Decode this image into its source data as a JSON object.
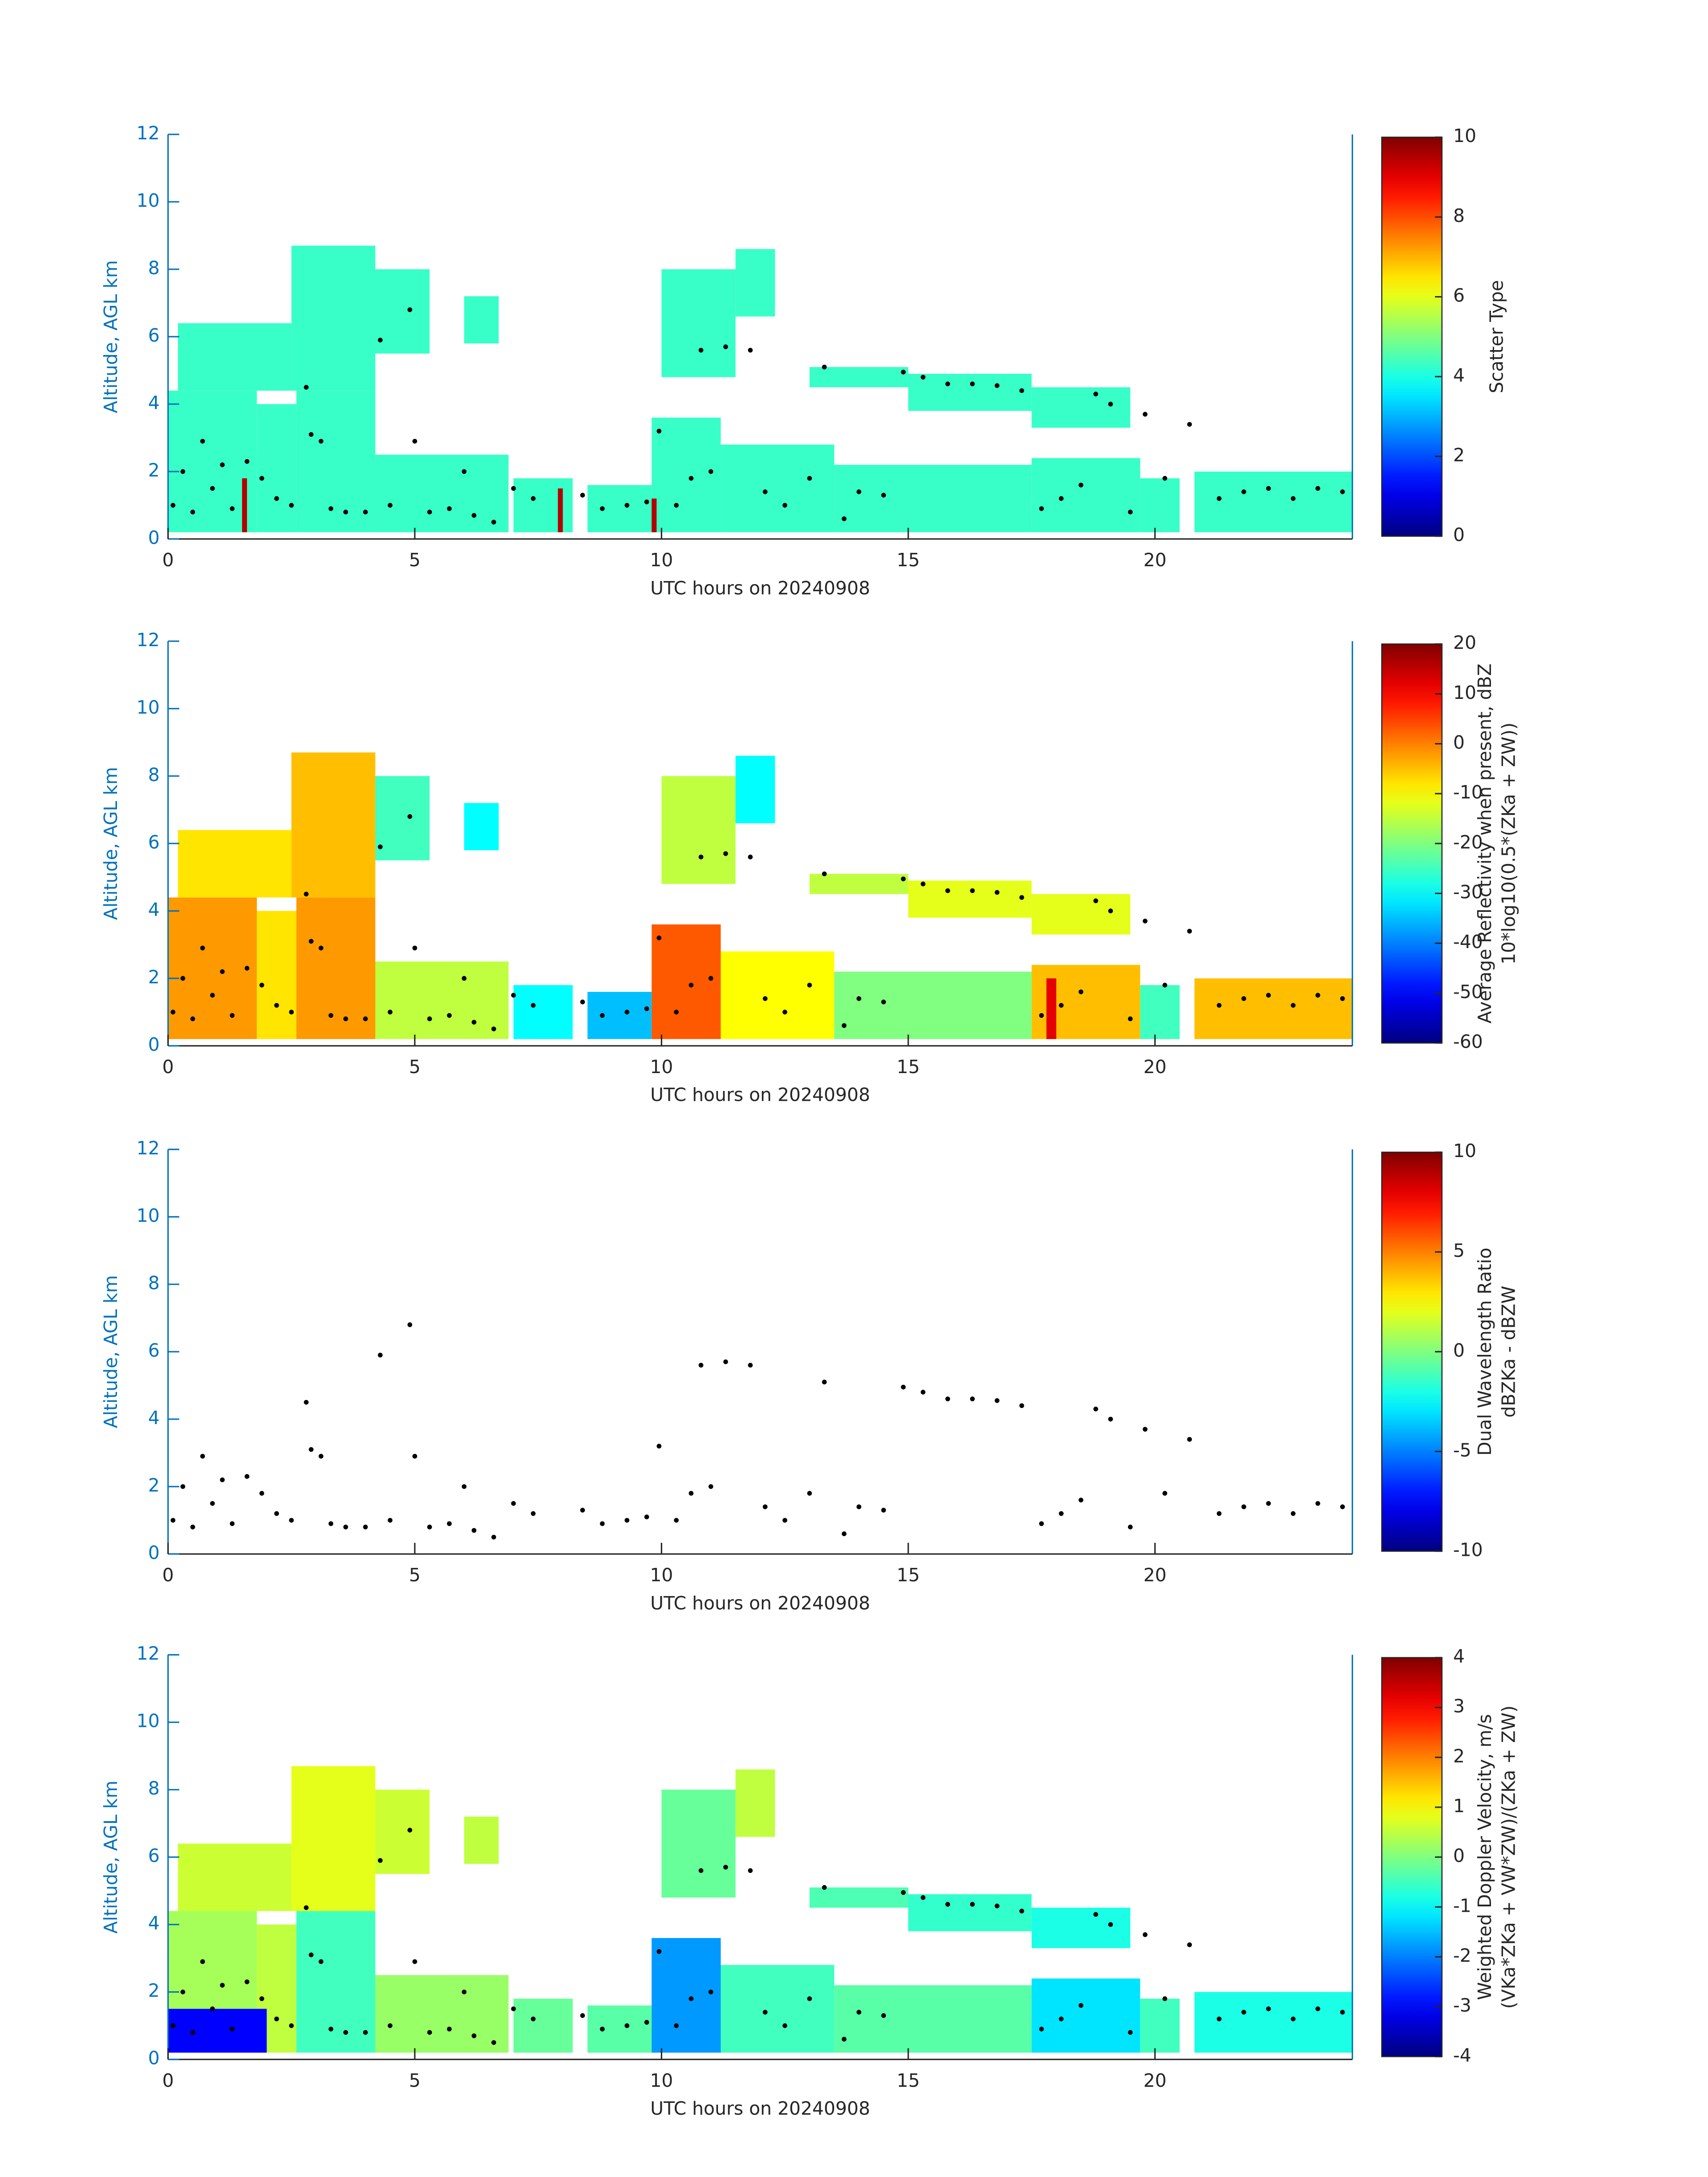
{
  "chart_data": [
    {
      "type": "heatmap",
      "ylabel": "Altitude, AGL km",
      "xlabel": "UTC hours on 20240908",
      "xlim": [
        0,
        24
      ],
      "xticks": [
        0,
        5,
        10,
        15,
        20
      ],
      "ylim": [
        0,
        12
      ],
      "yticks": [
        0,
        2,
        4,
        6,
        8,
        10,
        12
      ],
      "axis_color": "#0072bd",
      "colormap": "jet",
      "clim": [
        0,
        10
      ],
      "cticks": [
        0,
        2,
        4,
        6,
        8,
        10
      ],
      "colorbar_label": [
        "Scatter Type"
      ],
      "cells": [
        [
          0,
          1.8,
          0.2,
          4.4,
          4.3
        ],
        [
          1.8,
          2.6,
          0.2,
          4.0,
          4.3
        ],
        [
          2.6,
          4.2,
          0.2,
          4.4,
          4.3
        ],
        [
          2.5,
          4.2,
          4.4,
          8.7,
          4.3
        ],
        [
          0.2,
          2.5,
          4.4,
          6.4,
          4.3
        ],
        [
          4.2,
          5.3,
          5.5,
          8.0,
          4.3
        ],
        [
          6.0,
          6.7,
          5.8,
          7.2,
          4.3
        ],
        [
          4.2,
          6.9,
          0.2,
          2.5,
          4.3
        ],
        [
          7.0,
          8.2,
          0.2,
          1.8,
          4.3
        ],
        [
          8.5,
          9.8,
          0.2,
          1.6,
          4.3
        ],
        [
          9.8,
          11.2,
          0.2,
          3.6,
          4.3
        ],
        [
          11.2,
          13.5,
          0.2,
          2.8,
          4.3
        ],
        [
          10.0,
          11.5,
          4.8,
          8.0,
          4.3
        ],
        [
          11.5,
          12.3,
          6.6,
          8.6,
          4.3
        ],
        [
          13.0,
          15.0,
          4.5,
          5.1,
          4.3
        ],
        [
          15.0,
          17.5,
          3.8,
          4.9,
          4.3
        ],
        [
          17.5,
          19.5,
          3.3,
          4.5,
          4.3
        ],
        [
          13.5,
          17.5,
          0.2,
          2.2,
          4.3
        ],
        [
          17.5,
          19.7,
          0.2,
          2.4,
          4.3
        ],
        [
          19.7,
          20.5,
          0.2,
          1.8,
          4.3
        ],
        [
          20.8,
          24,
          0.2,
          2.0,
          4.3
        ],
        [
          1.5,
          1.6,
          0.2,
          1.8,
          9.5
        ],
        [
          7.9,
          8.0,
          0.2,
          1.5,
          9.5
        ],
        [
          9.8,
          9.9,
          0.2,
          1.2,
          9.5
        ]
      ],
      "points": {
        "color": "#000000",
        "x": [
          0.1,
          0.3,
          0.5,
          0.7,
          0.9,
          1.1,
          1.3,
          1.6,
          1.9,
          2.2,
          2.5,
          2.8,
          2.9,
          3.1,
          3.3,
          3.6,
          4.0,
          4.3,
          4.5,
          4.9,
          5.0,
          5.3,
          5.7,
          6.0,
          6.2,
          6.6,
          7.0,
          7.4,
          8.4,
          8.8,
          9.3,
          9.7,
          9.95,
          10.3,
          10.6,
          10.8,
          11.0,
          11.3,
          11.8,
          12.1,
          12.5,
          13.0,
          13.3,
          13.7,
          14.0,
          14.5,
          14.9,
          15.3,
          15.8,
          16.3,
          16.8,
          17.3,
          17.7,
          18.1,
          18.5,
          18.8,
          19.1,
          19.5,
          19.8,
          20.2,
          20.7,
          21.3,
          21.8,
          22.3,
          22.8,
          23.3,
          23.8
        ],
        "y": [
          1.0,
          2.0,
          0.8,
          2.9,
          1.5,
          2.2,
          0.9,
          2.3,
          1.8,
          1.2,
          1.0,
          4.5,
          3.1,
          2.9,
          0.9,
          0.8,
          0.8,
          5.9,
          1.0,
          6.8,
          2.9,
          0.8,
          0.9,
          2.0,
          0.7,
          0.5,
          1.5,
          1.2,
          1.3,
          0.9,
          1.0,
          1.1,
          3.2,
          1.0,
          1.8,
          5.6,
          2.0,
          5.7,
          5.6,
          1.4,
          1.0,
          1.8,
          5.1,
          0.6,
          1.4,
          1.3,
          4.95,
          4.8,
          4.6,
          4.6,
          4.55,
          4.4,
          0.9,
          1.2,
          1.6,
          4.3,
          4.0,
          0.8,
          3.7,
          1.8,
          3.4,
          1.2,
          1.4,
          1.5,
          1.2,
          1.5,
          1.4
        ]
      }
    },
    {
      "type": "heatmap",
      "ylabel": "Altitude, AGL km",
      "xlabel": "UTC hours on 20240908",
      "xlim": [
        0,
        24
      ],
      "xticks": [
        0,
        5,
        10,
        15,
        20
      ],
      "ylim": [
        0,
        12
      ],
      "yticks": [
        0,
        2,
        4,
        6,
        8,
        10,
        12
      ],
      "axis_color": "#0072bd",
      "colormap": "jet",
      "clim": [
        -60,
        20
      ],
      "cticks": [
        -60,
        -50,
        -40,
        -30,
        -20,
        -10,
        0,
        10,
        20
      ],
      "colorbar_label": [
        "Average Reflectivity when present, dBZ",
        "10*log10(0.5*(ZKa + ZW))"
      ],
      "cells": [
        [
          0,
          1.8,
          0.2,
          4.4,
          -2
        ],
        [
          1.8,
          2.6,
          0.2,
          4.0,
          -8
        ],
        [
          2.6,
          4.2,
          0.2,
          4.4,
          -2
        ],
        [
          2.5,
          4.2,
          4.4,
          8.7,
          -5
        ],
        [
          0.2,
          2.5,
          4.4,
          6.4,
          -8
        ],
        [
          4.2,
          5.3,
          5.5,
          8.0,
          -25
        ],
        [
          6.0,
          6.7,
          5.8,
          7.2,
          -30
        ],
        [
          4.2,
          6.9,
          0.2,
          2.5,
          -15
        ],
        [
          7.0,
          8.2,
          0.2,
          1.8,
          -30
        ],
        [
          8.5,
          9.8,
          0.2,
          1.6,
          -35
        ],
        [
          9.8,
          11.2,
          0.2,
          3.6,
          3
        ],
        [
          11.2,
          13.5,
          0.2,
          2.8,
          -10
        ],
        [
          10.0,
          11.5,
          4.8,
          8.0,
          -15
        ],
        [
          11.5,
          12.3,
          6.6,
          8.6,
          -30
        ],
        [
          13.0,
          15.0,
          4.5,
          5.1,
          -15
        ],
        [
          15.0,
          17.5,
          3.8,
          4.9,
          -12
        ],
        [
          17.5,
          19.5,
          3.3,
          4.5,
          -12
        ],
        [
          13.5,
          17.5,
          0.2,
          2.2,
          -20
        ],
        [
          17.5,
          19.7,
          0.2,
          2.4,
          -5
        ],
        [
          19.7,
          20.5,
          0.2,
          1.8,
          -25
        ],
        [
          20.8,
          24,
          0.2,
          2.0,
          -5
        ],
        [
          17.8,
          18.0,
          0.2,
          2.0,
          12
        ]
      ],
      "points": {
        "color": "#000000",
        "x": [
          0.1,
          0.3,
          0.5,
          0.7,
          0.9,
          1.1,
          1.3,
          1.6,
          1.9,
          2.2,
          2.5,
          2.8,
          2.9,
          3.1,
          3.3,
          3.6,
          4.0,
          4.3,
          4.5,
          4.9,
          5.0,
          5.3,
          5.7,
          6.0,
          6.2,
          6.6,
          7.0,
          7.4,
          8.4,
          8.8,
          9.3,
          9.7,
          9.95,
          10.3,
          10.6,
          10.8,
          11.0,
          11.3,
          11.8,
          12.1,
          12.5,
          13.0,
          13.3,
          13.7,
          14.0,
          14.5,
          14.9,
          15.3,
          15.8,
          16.3,
          16.8,
          17.3,
          17.7,
          18.1,
          18.5,
          18.8,
          19.1,
          19.5,
          19.8,
          20.2,
          20.7,
          21.3,
          21.8,
          22.3,
          22.8,
          23.3,
          23.8
        ],
        "y": [
          1.0,
          2.0,
          0.8,
          2.9,
          1.5,
          2.2,
          0.9,
          2.3,
          1.8,
          1.2,
          1.0,
          4.5,
          3.1,
          2.9,
          0.9,
          0.8,
          0.8,
          5.9,
          1.0,
          6.8,
          2.9,
          0.8,
          0.9,
          2.0,
          0.7,
          0.5,
          1.5,
          1.2,
          1.3,
          0.9,
          1.0,
          1.1,
          3.2,
          1.0,
          1.8,
          5.6,
          2.0,
          5.7,
          5.6,
          1.4,
          1.0,
          1.8,
          5.1,
          0.6,
          1.4,
          1.3,
          4.95,
          4.8,
          4.6,
          4.6,
          4.55,
          4.4,
          0.9,
          1.2,
          1.6,
          4.3,
          4.0,
          0.8,
          3.7,
          1.8,
          3.4,
          1.2,
          1.4,
          1.5,
          1.2,
          1.5,
          1.4
        ]
      }
    },
    {
      "type": "heatmap",
      "ylabel": "Altitude, AGL km",
      "xlabel": "UTC hours on 20240908",
      "xlim": [
        0,
        24
      ],
      "xticks": [
        0,
        5,
        10,
        15,
        20
      ],
      "ylim": [
        0,
        12
      ],
      "yticks": [
        0,
        2,
        4,
        6,
        8,
        10,
        12
      ],
      "axis_color": "#0072bd",
      "colormap": "jet",
      "clim": [
        -10,
        10
      ],
      "cticks": [
        -10,
        -5,
        0,
        5,
        10
      ],
      "colorbar_label": [
        "Dual Wavelength Ratio",
        "dBZKa - dBZW"
      ],
      "cells": [],
      "points": {
        "color": "#000000",
        "x": [
          0.1,
          0.3,
          0.5,
          0.7,
          0.9,
          1.1,
          1.3,
          1.6,
          1.9,
          2.2,
          2.5,
          2.8,
          2.9,
          3.1,
          3.3,
          3.6,
          4.0,
          4.3,
          4.5,
          4.9,
          5.0,
          5.3,
          5.7,
          6.0,
          6.2,
          6.6,
          7.0,
          7.4,
          8.4,
          8.8,
          9.3,
          9.7,
          9.95,
          10.3,
          10.6,
          10.8,
          11.0,
          11.3,
          11.8,
          12.1,
          12.5,
          13.0,
          13.3,
          13.7,
          14.0,
          14.5,
          14.9,
          15.3,
          15.8,
          16.3,
          16.8,
          17.3,
          17.7,
          18.1,
          18.5,
          18.8,
          19.1,
          19.5,
          19.8,
          20.2,
          20.7,
          21.3,
          21.8,
          22.3,
          22.8,
          23.3,
          23.8
        ],
        "y": [
          1.0,
          2.0,
          0.8,
          2.9,
          1.5,
          2.2,
          0.9,
          2.3,
          1.8,
          1.2,
          1.0,
          4.5,
          3.1,
          2.9,
          0.9,
          0.8,
          0.8,
          5.9,
          1.0,
          6.8,
          2.9,
          0.8,
          0.9,
          2.0,
          0.7,
          0.5,
          1.5,
          1.2,
          1.3,
          0.9,
          1.0,
          1.1,
          3.2,
          1.0,
          1.8,
          5.6,
          2.0,
          5.7,
          5.6,
          1.4,
          1.0,
          1.8,
          5.1,
          0.6,
          1.4,
          1.3,
          4.95,
          4.8,
          4.6,
          4.6,
          4.55,
          4.4,
          0.9,
          1.2,
          1.6,
          4.3,
          4.0,
          0.8,
          3.7,
          1.8,
          3.4,
          1.2,
          1.4,
          1.5,
          1.2,
          1.5,
          1.4
        ]
      }
    },
    {
      "type": "heatmap",
      "ylabel": "Altitude, AGL km",
      "xlabel": "UTC hours on 20240908",
      "xlim": [
        0,
        24
      ],
      "xticks": [
        0,
        5,
        10,
        15,
        20
      ],
      "ylim": [
        0,
        12
      ],
      "yticks": [
        0,
        2,
        4,
        6,
        8,
        10,
        12
      ],
      "axis_color": "#0072bd",
      "colormap": "jet",
      "clim": [
        -4,
        4
      ],
      "cticks": [
        -4,
        -3,
        -2,
        -1,
        0,
        1,
        2,
        3,
        4
      ],
      "colorbar_label": [
        "Weighted Doppler Velocity, m/s",
        "(VKa*ZKa + VW*ZW)/(ZKa + ZW)"
      ],
      "cells": [
        [
          0,
          1.8,
          1.5,
          4.4,
          0.3
        ],
        [
          1.8,
          2.6,
          0.2,
          4.0,
          0.5
        ],
        [
          2.6,
          4.2,
          0.2,
          4.4,
          -0.5
        ],
        [
          2.5,
          4.2,
          4.4,
          8.7,
          0.8
        ],
        [
          0.2,
          2.5,
          4.4,
          6.4,
          0.6
        ],
        [
          4.2,
          5.3,
          5.5,
          8.0,
          0.6
        ],
        [
          6.0,
          6.7,
          5.8,
          7.2,
          0.5
        ],
        [
          4.2,
          6.9,
          0.2,
          2.5,
          0.2
        ],
        [
          7.0,
          8.2,
          0.2,
          1.8,
          -0.2
        ],
        [
          8.5,
          9.8,
          0.2,
          1.6,
          -0.3
        ],
        [
          9.8,
          11.2,
          0.2,
          3.6,
          -1.8
        ],
        [
          11.2,
          13.5,
          0.2,
          2.8,
          -0.5
        ],
        [
          10.0,
          11.5,
          4.8,
          8.0,
          -0.2
        ],
        [
          11.5,
          12.3,
          6.6,
          8.6,
          0.5
        ],
        [
          13.0,
          15.0,
          4.5,
          5.1,
          -0.4
        ],
        [
          15.0,
          17.5,
          3.8,
          4.9,
          -0.6
        ],
        [
          17.5,
          19.5,
          3.3,
          4.5,
          -0.8
        ],
        [
          13.5,
          17.5,
          0.2,
          2.2,
          -0.3
        ],
        [
          17.5,
          19.7,
          0.2,
          2.4,
          -1.2
        ],
        [
          19.7,
          20.5,
          0.2,
          1.8,
          -0.5
        ],
        [
          20.8,
          24,
          0.2,
          2.0,
          -0.8
        ],
        [
          0,
          2.0,
          0.2,
          1.5,
          -3
        ]
      ],
      "points": {
        "color": "#000000",
        "x": [
          0.1,
          0.3,
          0.5,
          0.7,
          0.9,
          1.1,
          1.3,
          1.6,
          1.9,
          2.2,
          2.5,
          2.8,
          2.9,
          3.1,
          3.3,
          3.6,
          4.0,
          4.3,
          4.5,
          4.9,
          5.0,
          5.3,
          5.7,
          6.0,
          6.2,
          6.6,
          7.0,
          7.4,
          8.4,
          8.8,
          9.3,
          9.7,
          9.95,
          10.3,
          10.6,
          10.8,
          11.0,
          11.3,
          11.8,
          12.1,
          12.5,
          13.0,
          13.3,
          13.7,
          14.0,
          14.5,
          14.9,
          15.3,
          15.8,
          16.3,
          16.8,
          17.3,
          17.7,
          18.1,
          18.5,
          18.8,
          19.1,
          19.5,
          19.8,
          20.2,
          20.7,
          21.3,
          21.8,
          22.3,
          22.8,
          23.3,
          23.8
        ],
        "y": [
          1.0,
          2.0,
          0.8,
          2.9,
          1.5,
          2.2,
          0.9,
          2.3,
          1.8,
          1.2,
          1.0,
          4.5,
          3.1,
          2.9,
          0.9,
          0.8,
          0.8,
          5.9,
          1.0,
          6.8,
          2.9,
          0.8,
          0.9,
          2.0,
          0.7,
          0.5,
          1.5,
          1.2,
          1.3,
          0.9,
          1.0,
          1.1,
          3.2,
          1.0,
          1.8,
          5.6,
          2.0,
          5.7,
          5.6,
          1.4,
          1.0,
          1.8,
          5.1,
          0.6,
          1.4,
          1.3,
          4.95,
          4.8,
          4.6,
          4.6,
          4.55,
          4.4,
          0.9,
          1.2,
          1.6,
          4.3,
          4.0,
          0.8,
          3.7,
          1.8,
          3.4,
          1.2,
          1.4,
          1.5,
          1.2,
          1.5,
          1.4
        ]
      }
    }
  ]
}
